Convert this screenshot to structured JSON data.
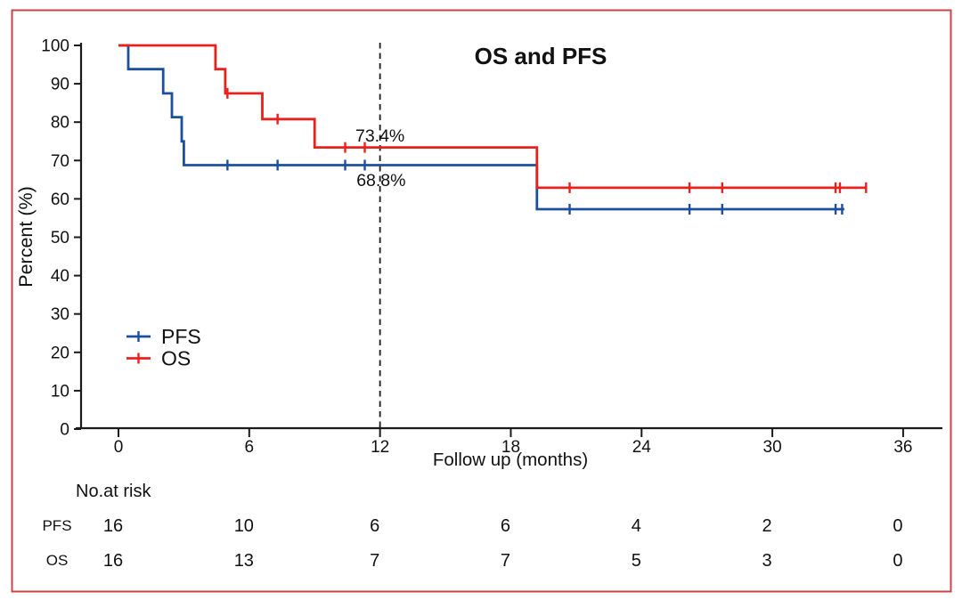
{
  "figure": {
    "border_color": "#c84444",
    "background": "#ffffff"
  },
  "chart_data": {
    "type": "line",
    "subtype": "kaplan-meier-step-curves",
    "title": "OS and PFS",
    "xlabel": "Follow up (months)",
    "ylabel": "Percent (%)",
    "xlim": [
      0,
      36
    ],
    "ylim": [
      0,
      100
    ],
    "x_ticks": [
      0,
      6,
      12,
      18,
      24,
      30,
      36
    ],
    "y_ticks": [
      0,
      10,
      20,
      30,
      40,
      50,
      60,
      70,
      80,
      90,
      100
    ],
    "grid": false,
    "reference_line_x": 12,
    "reference_line_style": "dashed-black-vertical",
    "legend_position": "inside-left-middle",
    "axis_color": "#1a1a1a",
    "series": [
      {
        "name": "PFS",
        "color": "#1c4f9c",
        "steps": [
          [
            0,
            100
          ],
          [
            0.45,
            93.8
          ],
          [
            2.05,
            87.5
          ],
          [
            2.45,
            81.3
          ],
          [
            2.9,
            75.0
          ],
          [
            3.0,
            68.8
          ],
          [
            19.2,
            57.3
          ],
          [
            33.3,
            57.3
          ]
        ],
        "censor_marks": [
          [
            5.0,
            68.8
          ],
          [
            7.3,
            68.8
          ],
          [
            10.4,
            68.8
          ],
          [
            11.3,
            68.8
          ],
          [
            20.7,
            57.3
          ],
          [
            26.2,
            57.3
          ],
          [
            27.7,
            57.3
          ],
          [
            32.9,
            57.3
          ],
          [
            33.2,
            57.3
          ]
        ]
      },
      {
        "name": "OS",
        "color": "#e8211d",
        "steps": [
          [
            0,
            100
          ],
          [
            4.45,
            93.8
          ],
          [
            4.9,
            87.5
          ],
          [
            6.6,
            80.8
          ],
          [
            9.0,
            73.4
          ],
          [
            19.2,
            62.9
          ],
          [
            34.3,
            62.9
          ]
        ],
        "censor_marks": [
          [
            5.0,
            87.5
          ],
          [
            7.3,
            80.8
          ],
          [
            10.4,
            73.4
          ],
          [
            11.3,
            73.4
          ],
          [
            20.7,
            62.9
          ],
          [
            26.2,
            62.9
          ],
          [
            27.7,
            62.9
          ],
          [
            32.9,
            62.9
          ],
          [
            33.1,
            62.9
          ],
          [
            34.3,
            62.9
          ]
        ]
      }
    ],
    "annotations": [
      {
        "text": "73.4%",
        "series": "OS",
        "color": "#e8211d",
        "x": 12.0,
        "y": 74.9
      },
      {
        "text": "68.8%",
        "series": "PFS",
        "color": "#1c4f9c",
        "x": 12.05,
        "y": 63.3
      }
    ]
  },
  "risk_table": {
    "header": "No.at risk",
    "time_points": [
      0,
      6,
      12,
      18,
      24,
      30,
      36
    ],
    "rows": [
      {
        "label": "PFS",
        "color": "#1c4f9c",
        "values": [
          "16",
          "10",
          "6",
          "6",
          "4",
          "2",
          "0"
        ]
      },
      {
        "label": "OS",
        "color": "#e8211d",
        "values": [
          "16",
          "13",
          "7",
          "7",
          "5",
          "3",
          "0"
        ]
      }
    ]
  }
}
